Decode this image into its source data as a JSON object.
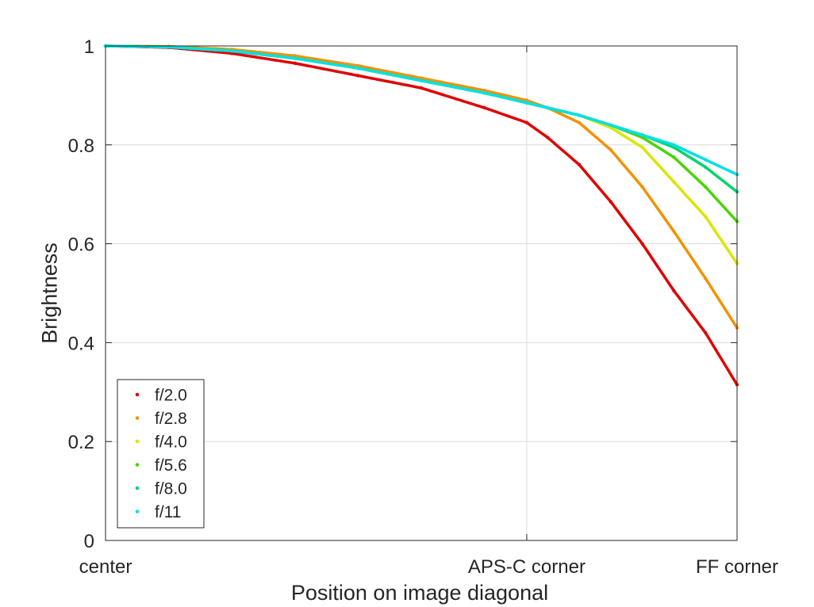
{
  "chart_data": {
    "type": "scatter",
    "xlabel": "Position on image diagonal",
    "ylabel": "Brightness",
    "xlim": [
      0,
      1
    ],
    "ylim": [
      0,
      1
    ],
    "x_ticks": [
      {
        "value": 0,
        "label": "center"
      },
      {
        "value": 0.667,
        "label": "APS-C corner"
      },
      {
        "value": 1,
        "label": "FF corner"
      }
    ],
    "y_ticks": [
      {
        "value": 0,
        "label": "0"
      },
      {
        "value": 0.2,
        "label": "0.2"
      },
      {
        "value": 0.4,
        "label": "0.4"
      },
      {
        "value": 0.6,
        "label": "0.6"
      },
      {
        "value": 0.8,
        "label": "0.8"
      },
      {
        "value": 1,
        "label": "1"
      }
    ],
    "grid": true,
    "legend_position": "bottom-left",
    "series": [
      {
        "name": "f/2.0",
        "color": "#e00000",
        "x": [
          0,
          0.1,
          0.2,
          0.3,
          0.4,
          0.5,
          0.6,
          0.667,
          0.7,
          0.75,
          0.8,
          0.85,
          0.9,
          0.95,
          1.0
        ],
        "y": [
          1.0,
          0.997,
          0.985,
          0.965,
          0.94,
          0.915,
          0.875,
          0.845,
          0.815,
          0.76,
          0.685,
          0.6,
          0.505,
          0.42,
          0.315
        ]
      },
      {
        "name": "f/2.8",
        "color": "#f29200",
        "x": [
          0,
          0.1,
          0.2,
          0.3,
          0.4,
          0.5,
          0.6,
          0.667,
          0.7,
          0.75,
          0.8,
          0.85,
          0.9,
          0.95,
          1.0
        ],
        "y": [
          1.0,
          0.999,
          0.993,
          0.98,
          0.96,
          0.935,
          0.91,
          0.89,
          0.875,
          0.845,
          0.79,
          0.715,
          0.625,
          0.53,
          0.43
        ]
      },
      {
        "name": "f/4.0",
        "color": "#d9e600",
        "x": [
          0,
          0.1,
          0.2,
          0.3,
          0.4,
          0.5,
          0.6,
          0.667,
          0.7,
          0.75,
          0.8,
          0.85,
          0.9,
          0.95,
          1.0
        ],
        "y": [
          1.0,
          0.998,
          0.99,
          0.975,
          0.955,
          0.93,
          0.905,
          0.885,
          0.875,
          0.86,
          0.835,
          0.795,
          0.725,
          0.655,
          0.56
        ]
      },
      {
        "name": "f/5.6",
        "color": "#48d500",
        "x": [
          0,
          0.1,
          0.2,
          0.3,
          0.4,
          0.5,
          0.6,
          0.667,
          0.7,
          0.75,
          0.8,
          0.85,
          0.9,
          0.95,
          1.0
        ],
        "y": [
          1.0,
          0.998,
          0.99,
          0.975,
          0.955,
          0.93,
          0.905,
          0.885,
          0.875,
          0.86,
          0.84,
          0.815,
          0.775,
          0.715,
          0.645
        ]
      },
      {
        "name": "f/8.0",
        "color": "#00d46a",
        "x": [
          0,
          0.1,
          0.2,
          0.3,
          0.4,
          0.5,
          0.6,
          0.667,
          0.7,
          0.75,
          0.8,
          0.85,
          0.9,
          0.95,
          1.0
        ],
        "y": [
          1.0,
          0.998,
          0.99,
          0.975,
          0.955,
          0.93,
          0.905,
          0.885,
          0.875,
          0.86,
          0.84,
          0.82,
          0.795,
          0.755,
          0.705
        ]
      },
      {
        "name": "f/11",
        "color": "#00e0e6",
        "x": [
          0,
          0.1,
          0.2,
          0.3,
          0.4,
          0.5,
          0.6,
          0.667,
          0.7,
          0.75,
          0.8,
          0.85,
          0.9,
          0.95,
          1.0
        ],
        "y": [
          1.0,
          0.998,
          0.99,
          0.975,
          0.955,
          0.93,
          0.905,
          0.885,
          0.875,
          0.86,
          0.84,
          0.82,
          0.8,
          0.77,
          0.74
        ]
      }
    ]
  }
}
